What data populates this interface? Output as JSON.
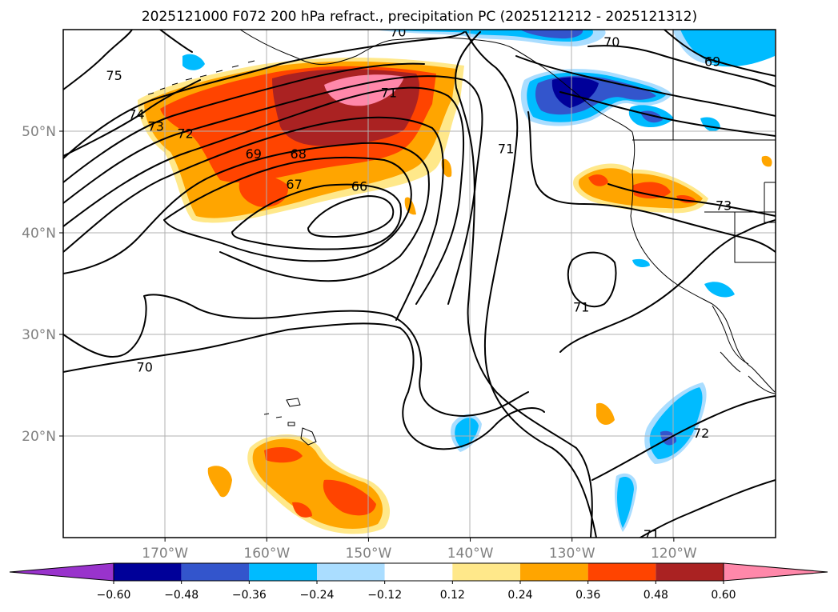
{
  "title": "2025121000 F072 200 hPa refract., precipitation PC (2025121212 - 2025121312)",
  "map": {
    "lon_range": [
      -180,
      -110
    ],
    "lat_range": [
      10,
      60
    ],
    "lon_ticks": [
      {
        "value": -170,
        "label": "170°W"
      },
      {
        "value": -160,
        "label": "160°W"
      },
      {
        "value": -150,
        "label": "150°W"
      },
      {
        "value": -140,
        "label": "140°W"
      },
      {
        "value": -130,
        "label": "130°W"
      },
      {
        "value": -120,
        "label": "120°W"
      }
    ],
    "lat_ticks": [
      {
        "value": 50,
        "label": "50°N"
      },
      {
        "value": 40,
        "label": "40°N"
      },
      {
        "value": 30,
        "label": "30°N"
      },
      {
        "value": 20,
        "label": "20°N"
      }
    ],
    "grid": true
  },
  "contour_labels": [
    {
      "text": "75",
      "lon": -175,
      "lat": 55.5
    },
    {
      "text": "74",
      "lon": -172.8,
      "lat": 51.7
    },
    {
      "text": "73",
      "lon": -170.9,
      "lat": 50.5
    },
    {
      "text": "72",
      "lon": -168,
      "lat": 49.8
    },
    {
      "text": "71",
      "lon": -148,
      "lat": 53.8
    },
    {
      "text": "69",
      "lon": -161.3,
      "lat": 47.8
    },
    {
      "text": "68",
      "lon": -156.9,
      "lat": 47.8
    },
    {
      "text": "67",
      "lon": -157.3,
      "lat": 44.8
    },
    {
      "text": "66",
      "lon": -150.9,
      "lat": 44.6
    },
    {
      "text": "70",
      "lon": -147.1,
      "lat": 59.8
    },
    {
      "text": "70",
      "lon": -126.1,
      "lat": 58.8
    },
    {
      "text": "69",
      "lon": -116.2,
      "lat": 56.9
    },
    {
      "text": "71",
      "lon": -136.5,
      "lat": 48.3
    },
    {
      "text": "73",
      "lon": -115.1,
      "lat": 42.7
    },
    {
      "text": "71",
      "lon": -129.1,
      "lat": 32.7
    },
    {
      "text": "70",
      "lon": -172,
      "lat": 26.8
    },
    {
      "text": "72",
      "lon": -117.3,
      "lat": 20.3
    },
    {
      "text": "71",
      "lon": -122.2,
      "lat": 10.3
    }
  ],
  "colorbar": {
    "levels": [
      "−0.60",
      "−0.48",
      "−0.36",
      "−0.24",
      "−0.12",
      "0.12",
      "0.24",
      "0.36",
      "0.48",
      "0.60"
    ],
    "colors": [
      "#9933cc",
      "#000099",
      "#3355cc",
      "#00bbff",
      "#aaddff",
      "#ffffff",
      "#ffe88a",
      "#ffa500",
      "#ff4400",
      "#aa2222",
      "#ff88aa"
    ]
  }
}
